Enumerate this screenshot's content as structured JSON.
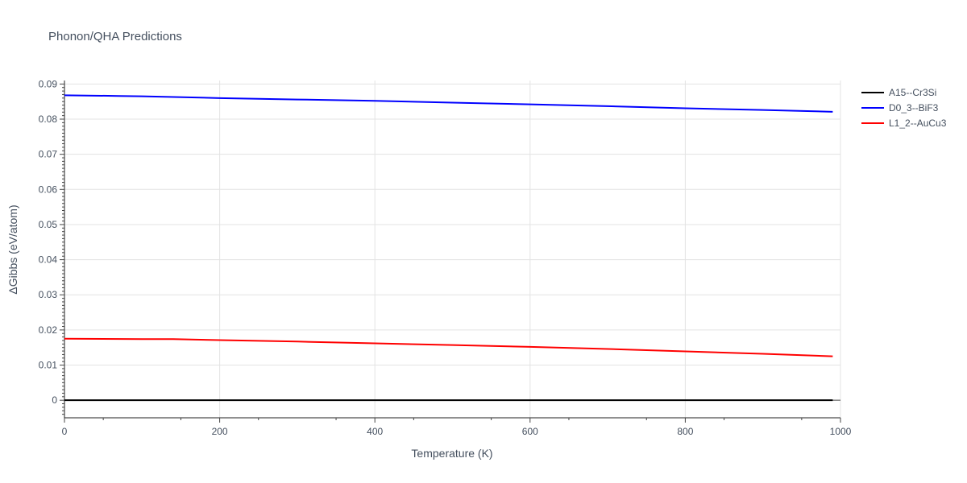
{
  "chart_data": {
    "type": "line",
    "title": "Phonon/QHA Predictions",
    "xlabel": "Temperature (K)",
    "ylabel": "ΔGibbs (eV/atom)",
    "xlim": [
      0,
      1000
    ],
    "ylim": [
      -0.005,
      0.091
    ],
    "x_ticks": [
      0,
      200,
      400,
      600,
      800,
      1000
    ],
    "x_tick_labels": [
      "0",
      "200",
      "400",
      "600",
      "800",
      "1000"
    ],
    "y_ticks": [
      0,
      0.01,
      0.02,
      0.03,
      0.04,
      0.05,
      0.06,
      0.07,
      0.08,
      0.09
    ],
    "y_tick_labels": [
      "0",
      "0.01",
      "0.02",
      "0.03",
      "0.04",
      "0.05",
      "0.06",
      "0.07",
      "0.08",
      "0.09"
    ],
    "grid": true,
    "legend_position": "top-right-outside",
    "series": [
      {
        "name": "A15--Cr3Si",
        "color": "#000000",
        "x": [
          0,
          100,
          200,
          300,
          400,
          500,
          600,
          700,
          800,
          900,
          990
        ],
        "y": [
          0,
          0,
          0,
          0,
          0,
          0,
          0,
          0,
          0,
          0,
          0
        ]
      },
      {
        "name": "D0_3--BiF3",
        "color": "#0000ff",
        "x": [
          0,
          70,
          100,
          200,
          300,
          400,
          500,
          600,
          700,
          800,
          900,
          990
        ],
        "y": [
          0.0868,
          0.0866,
          0.0865,
          0.086,
          0.0856,
          0.0852,
          0.0847,
          0.0842,
          0.0837,
          0.0831,
          0.0826,
          0.0821
        ]
      },
      {
        "name": "L1_2--AuCu3",
        "color": "#ff0000",
        "x": [
          0,
          100,
          140,
          200,
          300,
          400,
          500,
          600,
          700,
          800,
          900,
          990
        ],
        "y": [
          0.0175,
          0.0174,
          0.0174,
          0.0171,
          0.0167,
          0.0162,
          0.0157,
          0.0152,
          0.0146,
          0.0139,
          0.0132,
          0.0125
        ]
      }
    ]
  }
}
